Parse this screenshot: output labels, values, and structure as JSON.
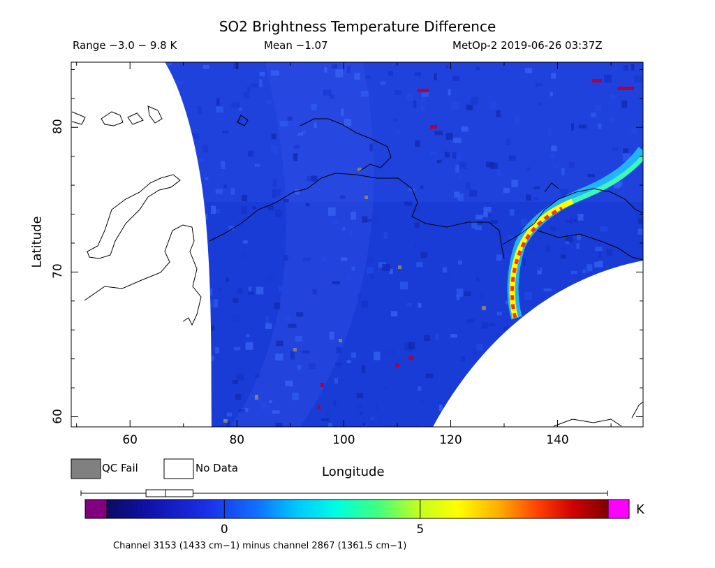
{
  "title": "SO2 Brightness Temperature Difference",
  "range_text": "Range −3.0 − 9.8 K",
  "mean_text": "Mean −1.07",
  "satellite_text": "MetOp-2 2019-06-26 03:37Z",
  "map": {
    "x_axis_label": "Longitude",
    "y_axis_label": "Latitude",
    "lon_range": [
      49,
      156
    ],
    "lat_range": [
      59.3,
      84.5
    ],
    "x_ticks": [
      60,
      80,
      100,
      120,
      140
    ],
    "y_ticks": [
      60,
      70,
      80
    ],
    "x_tick_labels": [
      "60",
      "80",
      "100",
      "120",
      "140"
    ],
    "y_tick_labels": [
      "60",
      "70",
      "80"
    ]
  },
  "legend": {
    "qc_fail_label": "QC Fail",
    "no_data_label": "No Data",
    "qc_fail_color": "#808080",
    "no_data_color": "#ffffff"
  },
  "colorbar": {
    "min": -3.0,
    "max": 9.8,
    "unit_label": "K",
    "tick_values": [
      0,
      5
    ],
    "tick_labels": [
      "0",
      "5"
    ],
    "low_out_color": "#800080",
    "high_out_color": "#ff00ff",
    "box_marker_range": [
      -2.0,
      -0.8
    ],
    "box_marker_median": -1.5,
    "caption": "Channel 3153 (1433 cm−1) minus channel 2867 (1361.5 cm−1)"
  },
  "colors": {
    "background_field": "#1a3cd6",
    "qc_fail": "#808080"
  }
}
